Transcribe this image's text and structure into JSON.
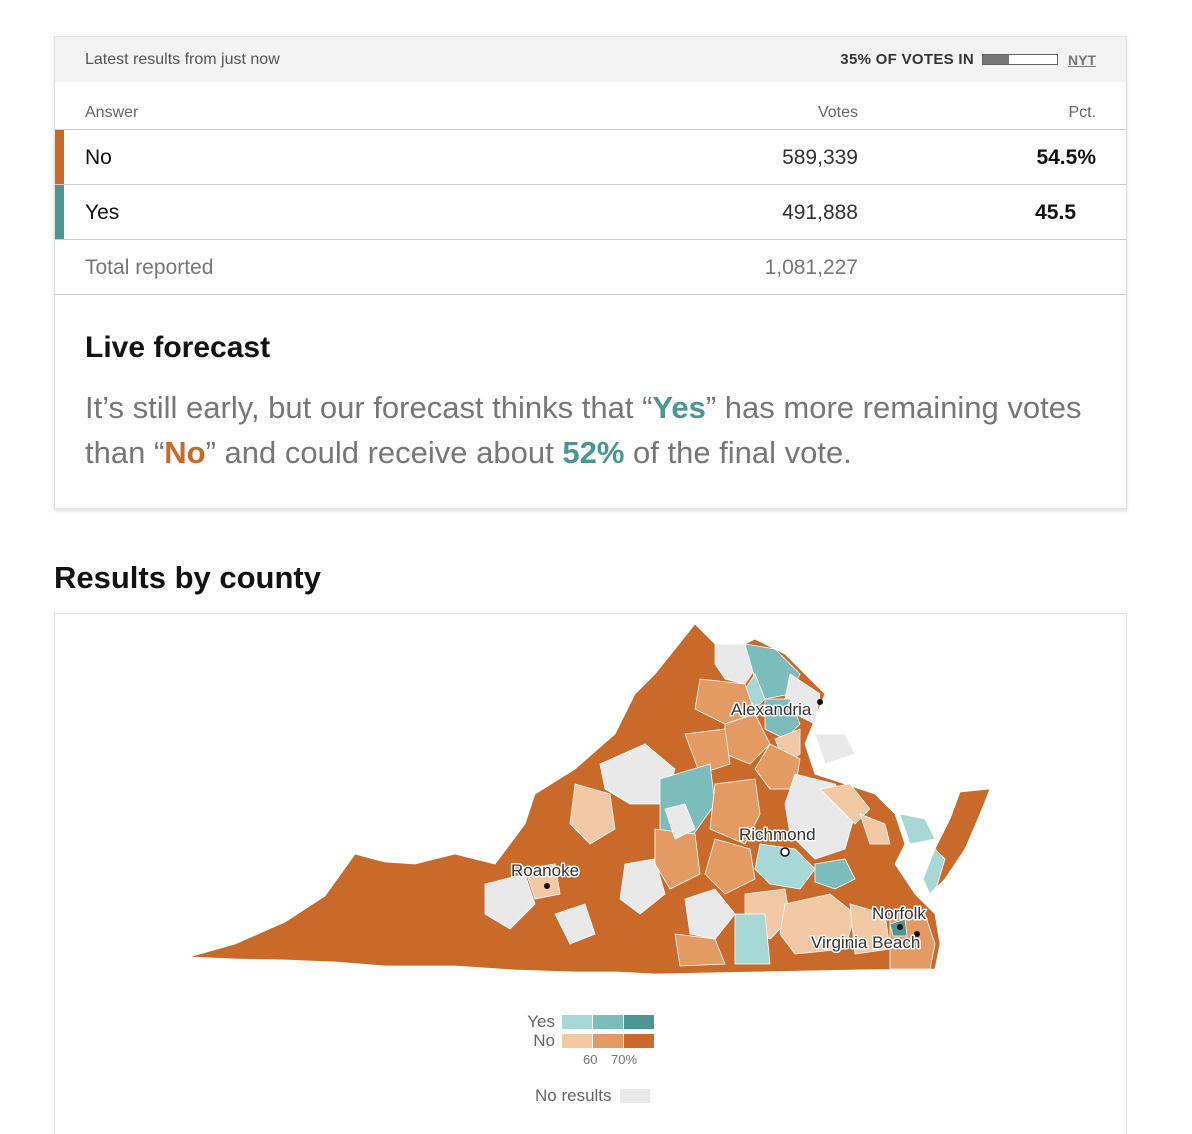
{
  "header": {
    "latest": "Latest results from just now",
    "votes_in": "35% OF VOTES IN",
    "votes_in_fraction": 0.35,
    "source": "NYT"
  },
  "table": {
    "headers": {
      "answer": "Answer",
      "votes": "Votes",
      "pct": "Pct."
    },
    "rows": [
      {
        "name": "No",
        "votes": "589,339",
        "pct": "54.5%",
        "color": "#c96a2b"
      },
      {
        "name": "Yes",
        "votes": "491,888",
        "pct": "45.5",
        "color": "#4c9794"
      }
    ],
    "total": {
      "label": "Total reported",
      "votes": "1,081,227"
    }
  },
  "forecast": {
    "title": "Live forecast",
    "text_1": "It’s still early, but our forecast thinks that “",
    "yes": "Yes",
    "text_2": "” has more remaining votes than “",
    "no": "No",
    "text_3": "” and could receive about ",
    "pct": "52%",
    "text_4": " of the final vote."
  },
  "section_title": "Results by county",
  "map": {
    "cities": [
      "Alexandria",
      "Richmond",
      "Roanoke",
      "Norfolk",
      "Virginia Beach"
    ],
    "colors": {
      "yes": [
        "#a8d8d6",
        "#7cbcba",
        "#4c9794"
      ],
      "no": [
        "#f3c8a4",
        "#e39a63",
        "#c96a2b"
      ],
      "no_results": "#e9e9e9"
    },
    "legend": {
      "yes_label": "Yes",
      "no_label": "No",
      "ticks": [
        "60",
        "70%"
      ],
      "no_results": "No results"
    }
  }
}
